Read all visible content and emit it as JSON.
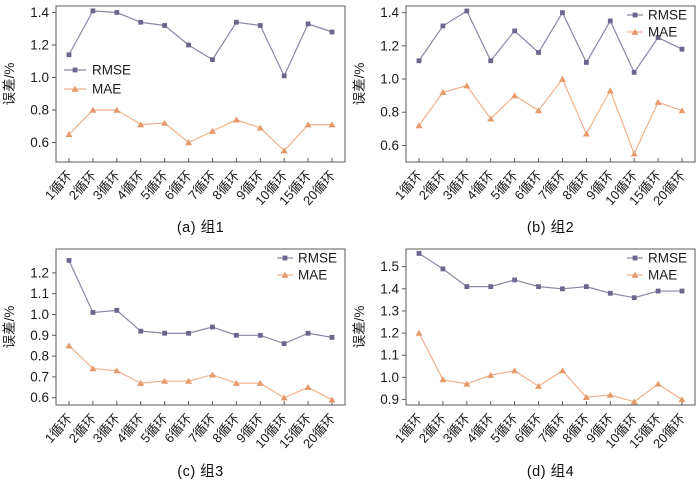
{
  "figure": {
    "background": "#ffffff",
    "ylabel": "误差/%",
    "categories": [
      "1循环",
      "2循环",
      "3循环",
      "4循环",
      "5循环",
      "6循环",
      "7循环",
      "8循环",
      "9循环",
      "10循环",
      "15循环",
      "20循环"
    ],
    "legend_labels": [
      "RMSE",
      "MAE"
    ]
  },
  "colors": {
    "rmse_line": "#8B86A4",
    "rmse_marker": "#6C668E",
    "mae_line": "#F0B18C",
    "mae_marker": "#E69A6B",
    "axis": "#5a5a5a",
    "text": "#1a1a1a"
  },
  "chart_data": [
    {
      "type": "line",
      "caption": "(a) 组1",
      "ylabel": "误差/%",
      "categories": [
        "1循环",
        "2循环",
        "3循环",
        "4循环",
        "5循环",
        "6循环",
        "7循环",
        "8循环",
        "9循环",
        "10循环",
        "15循环",
        "20循环"
      ],
      "series": [
        {
          "name": "RMSE",
          "marker": "square",
          "values": [
            1.14,
            1.41,
            1.4,
            1.34,
            1.32,
            1.2,
            1.11,
            1.34,
            1.32,
            1.01,
            1.33,
            1.28
          ]
        },
        {
          "name": "MAE",
          "marker": "triangle",
          "values": [
            0.65,
            0.8,
            0.8,
            0.71,
            0.72,
            0.6,
            0.67,
            0.74,
            0.69,
            0.55,
            0.71,
            0.71
          ]
        }
      ],
      "ylim": [
        0.48,
        1.44
      ],
      "yticks": [
        0.6,
        0.8,
        1.0,
        1.2,
        1.4
      ],
      "legend_position": "left-middle",
      "grid": false
    },
    {
      "type": "line",
      "caption": "(b) 组2",
      "ylabel": "误差/%",
      "categories": [
        "1循环",
        "2循环",
        "3循环",
        "4循环",
        "5循环",
        "6循环",
        "7循环",
        "8循环",
        "9循环",
        "10循环",
        "15循环",
        "20循环"
      ],
      "series": [
        {
          "name": "RMSE",
          "marker": "square",
          "values": [
            1.11,
            1.32,
            1.41,
            1.11,
            1.29,
            1.16,
            1.4,
            1.1,
            1.35,
            1.04,
            1.25,
            1.18
          ]
        },
        {
          "name": "MAE",
          "marker": "triangle",
          "values": [
            0.72,
            0.92,
            0.96,
            0.76,
            0.9,
            0.81,
            1.0,
            0.67,
            0.93,
            0.55,
            0.86,
            0.81
          ]
        }
      ],
      "ylim": [
        0.5,
        1.44
      ],
      "yticks": [
        0.6,
        0.8,
        1.0,
        1.2,
        1.4
      ],
      "legend_position": "top-right",
      "grid": false
    },
    {
      "type": "line",
      "caption": "(c) 组3",
      "ylabel": "误差/%",
      "categories": [
        "1循环",
        "2循环",
        "3循环",
        "4循环",
        "5循环",
        "6循环",
        "7循环",
        "8循环",
        "9循环",
        "10循环",
        "15循环",
        "20循环"
      ],
      "series": [
        {
          "name": "RMSE",
          "marker": "square",
          "values": [
            1.26,
            1.01,
            1.02,
            0.92,
            0.91,
            0.91,
            0.94,
            0.9,
            0.9,
            0.86,
            0.91,
            0.89
          ]
        },
        {
          "name": "MAE",
          "marker": "triangle",
          "values": [
            0.85,
            0.74,
            0.73,
            0.67,
            0.68,
            0.68,
            0.71,
            0.67,
            0.67,
            0.6,
            0.65,
            0.59
          ]
        }
      ],
      "ylim": [
        0.565,
        1.315
      ],
      "yticks": [
        0.6,
        0.7,
        0.8,
        0.9,
        1.0,
        1.1,
        1.2
      ],
      "legend_position": "top-right",
      "grid": false
    },
    {
      "type": "line",
      "caption": "(d) 组4",
      "ylabel": "误差/%",
      "categories": [
        "1循环",
        "2循环",
        "3循环",
        "4循环",
        "5循环",
        "6循环",
        "7循环",
        "8循环",
        "9循环",
        "10循环",
        "15循环",
        "20循环"
      ],
      "series": [
        {
          "name": "RMSE",
          "marker": "square",
          "values": [
            1.56,
            1.49,
            1.41,
            1.41,
            1.44,
            1.41,
            1.4,
            1.41,
            1.38,
            1.36,
            1.39,
            1.39
          ]
        },
        {
          "name": "MAE",
          "marker": "triangle",
          "values": [
            1.2,
            0.99,
            0.97,
            1.01,
            1.03,
            0.96,
            1.03,
            0.91,
            0.92,
            0.89,
            0.97,
            0.9
          ]
        }
      ],
      "ylim": [
        0.875,
        1.58
      ],
      "yticks": [
        0.9,
        1.0,
        1.1,
        1.2,
        1.3,
        1.4,
        1.5
      ],
      "legend_position": "top-right",
      "grid": false
    }
  ]
}
